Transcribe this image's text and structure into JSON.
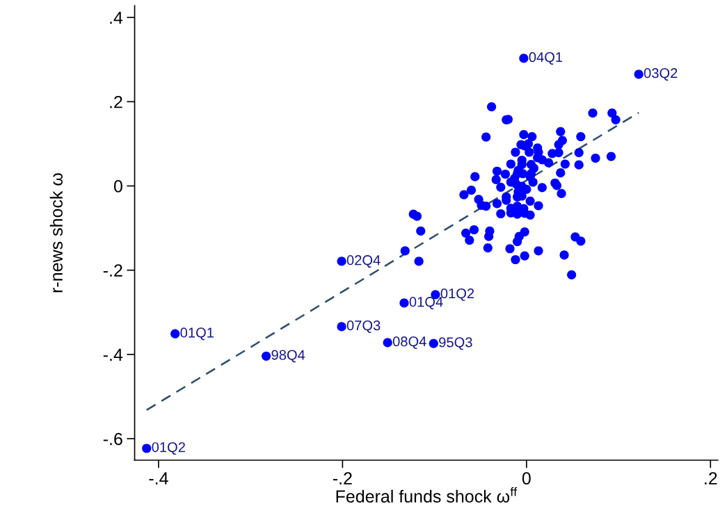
{
  "chart_data": {
    "type": "scatter",
    "xlabel": "Federal funds shock ω$^{ff}$",
    "ylabel": "r-news shock ω",
    "xlim": [
      -0.426,
      0.208
    ],
    "xticks": [
      {
        "value": -0.4,
        "label": "-.4"
      },
      {
        "value": -0.2,
        "label": "-.2"
      },
      0,
      {
        "value": 0.2,
        "label": ".2"
      }
    ],
    "ylim": [
      -0.651,
      0.428
    ],
    "yticks": [
      {
        "value": 0.4,
        "label": ".4"
      },
      {
        "value": 0.2,
        "label": ".2"
      },
      0,
      {
        "value": -0.2,
        "label": "-.2"
      },
      {
        "value": -0.4,
        "label": "-.4"
      },
      {
        "value": -0.6,
        "label": "-.6"
      }
    ],
    "series": [
      {
        "color": "#0000ff",
        "marker": "circle",
        "x": [
          -0.003,
          0.122,
          -0.201,
          -0.099,
          -0.133,
          -0.201,
          -0.151,
          -0.101,
          -0.382,
          -0.283,
          -0.413,
          -0.038,
          -0.022,
          -0.02,
          0.072,
          0.093,
          0.097,
          -0.044,
          -0.003,
          0.006,
          0.037,
          0.039,
          0.035,
          0.059,
          -0.006,
          -0.002,
          0.002,
          0.012,
          -0.012,
          0.003,
          0.013,
          0.028,
          0.035,
          0.057,
          0.075,
          0.092,
          0.012,
          0.017,
          -0.005,
          0.024,
          -0.017,
          0.042,
          0.057,
          0.005,
          -0.032,
          -0.023,
          -0.056,
          0.037,
          -0.033,
          0.007,
          0.031,
          0.033,
          0.017,
          -0.028,
          -0.06,
          -0.068,
          0.038,
          -0.052,
          -0.049,
          -0.044,
          -0.032,
          -0.022,
          -0.022,
          -0.01,
          -0.005,
          0.004,
          0.013,
          -0.017,
          -0.01,
          -0.003,
          -0.028,
          -0.017,
          -0.01,
          -0.002,
          0.004,
          -0.066,
          -0.057,
          -0.062,
          -0.04,
          -0.041,
          -0.042,
          -0.008,
          -0.01,
          -0.002,
          -0.018,
          -0.012,
          -0.002,
          0.013,
          0.041,
          0.053,
          0.059,
          0.049,
          -0.115,
          -0.132,
          -0.117,
          -0.123,
          -0.119,
          -0.009,
          -0.004,
          -0.011,
          0.004,
          0.0,
          -0.009,
          -0.017,
          0.008,
          -0.01,
          0.005,
          -0.013,
          -0.005,
          -0.005
        ],
        "values": [
          0.303,
          0.265,
          -0.179,
          -0.258,
          -0.278,
          -0.334,
          -0.372,
          -0.374,
          -0.351,
          -0.404,
          -0.623,
          0.188,
          0.157,
          0.158,
          0.173,
          0.173,
          0.157,
          0.116,
          0.122,
          0.117,
          0.129,
          0.108,
          0.098,
          0.117,
          0.098,
          0.095,
          0.1,
          0.09,
          0.08,
          0.08,
          0.08,
          0.077,
          0.079,
          0.079,
          0.066,
          0.07,
          0.067,
          0.062,
          0.061,
          0.055,
          0.052,
          0.052,
          0.05,
          0.051,
          0.035,
          0.028,
          0.022,
          0.031,
          0.015,
          0.009,
          0.007,
          0.001,
          -0.004,
          -0.003,
          -0.01,
          -0.021,
          -0.018,
          -0.032,
          -0.046,
          -0.048,
          -0.042,
          -0.026,
          -0.034,
          -0.026,
          -0.024,
          -0.036,
          -0.047,
          -0.053,
          -0.048,
          -0.054,
          -0.066,
          -0.064,
          -0.067,
          -0.065,
          -0.069,
          -0.112,
          -0.104,
          -0.129,
          -0.107,
          -0.12,
          -0.147,
          -0.12,
          -0.132,
          -0.109,
          -0.149,
          -0.175,
          -0.166,
          -0.154,
          -0.164,
          -0.121,
          -0.131,
          -0.211,
          -0.107,
          -0.154,
          -0.179,
          -0.067,
          -0.072,
          0.037,
          0.029,
          0.004,
          0.022,
          -0.008,
          -0.014,
          0.009,
          0.042,
          0.029,
          0.029,
          0.018,
          -0.001,
          0.051
        ]
      },
      {
        "type": "line",
        "color": "#2b4c6f",
        "line_style": "dashed",
        "marker": "none",
        "x": [
          -0.413,
          0.122
        ],
        "values": [
          -0.532,
          0.174
        ]
      }
    ],
    "annotations": [
      {
        "text": "04Q1",
        "x": -0.003,
        "y": 0.303
      },
      {
        "text": "03Q2",
        "x": 0.122,
        "y": 0.265
      },
      {
        "text": "02Q4",
        "x": -0.201,
        "y": -0.179
      },
      {
        "text": "01Q2",
        "x": -0.099,
        "y": -0.258
      },
      {
        "text": "01Q4",
        "x": -0.133,
        "y": -0.278
      },
      {
        "text": "07Q3",
        "x": -0.201,
        "y": -0.334
      },
      {
        "text": "08Q4",
        "x": -0.151,
        "y": -0.372
      },
      {
        "text": "95Q3",
        "x": -0.101,
        "y": -0.374
      },
      {
        "text": "01Q1",
        "x": -0.382,
        "y": -0.351
      },
      {
        "text": "98Q4",
        "x": -0.283,
        "y": -0.404
      },
      {
        "text": "01Q2",
        "x": -0.413,
        "y": -0.623
      }
    ],
    "grid": false
  }
}
